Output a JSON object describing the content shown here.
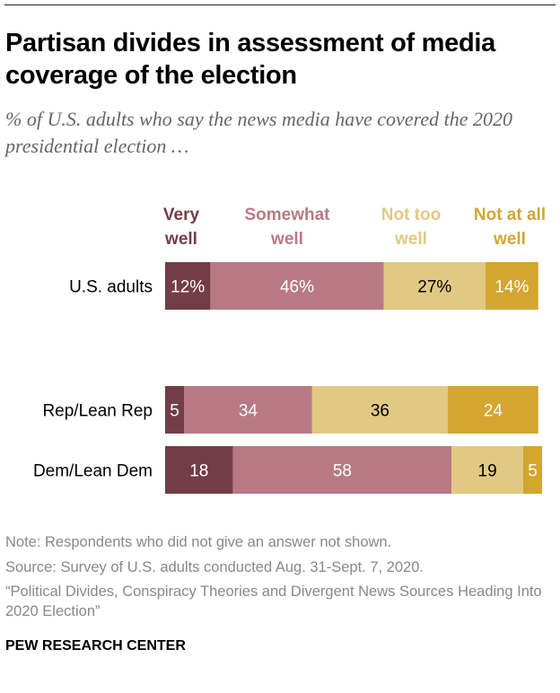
{
  "title": "Partisan divides in assessment of media coverage of the election",
  "subtitle": "% of U.S. adults who say the news media have covered the 2020 presidential election …",
  "chart_data": {
    "type": "bar",
    "orientation": "horizontal-stacked",
    "categories": [
      "U.S. adults",
      "Rep/Lean Rep",
      "Dem/Lean Dem"
    ],
    "series": [
      {
        "name": "Very well",
        "values": [
          12,
          5,
          18
        ],
        "color": "#733D47"
      },
      {
        "name": "Somewhat well",
        "values": [
          46,
          34,
          58
        ],
        "color": "#B87985"
      },
      {
        "name": "Not too well",
        "values": [
          27,
          36,
          19
        ],
        "color": "#E2C983"
      },
      {
        "name": "Not at all well",
        "values": [
          14,
          24,
          5
        ],
        "color": "#D3A631"
      }
    ],
    "data_labels": [
      [
        "12%",
        "46%",
        "27%",
        "14%"
      ],
      [
        "5",
        "34",
        "36",
        "24"
      ],
      [
        "18",
        "58",
        "19",
        "5"
      ]
    ],
    "label_colors": [
      "#ffffff",
      "#ffffff",
      "#000000",
      "#ffffff"
    ],
    "legend_placement": "top",
    "grid": false
  },
  "notes": {
    "note": "Note: Respondents who did not give an answer not shown.",
    "source": "Source: Survey of U.S. adults conducted Aug. 31-Sept. 7, 2020.",
    "report": "“Political Divides, Conspiracy Theories and Divergent News Sources Heading Into 2020 Election”"
  },
  "brand": "PEW RESEARCH CENTER"
}
